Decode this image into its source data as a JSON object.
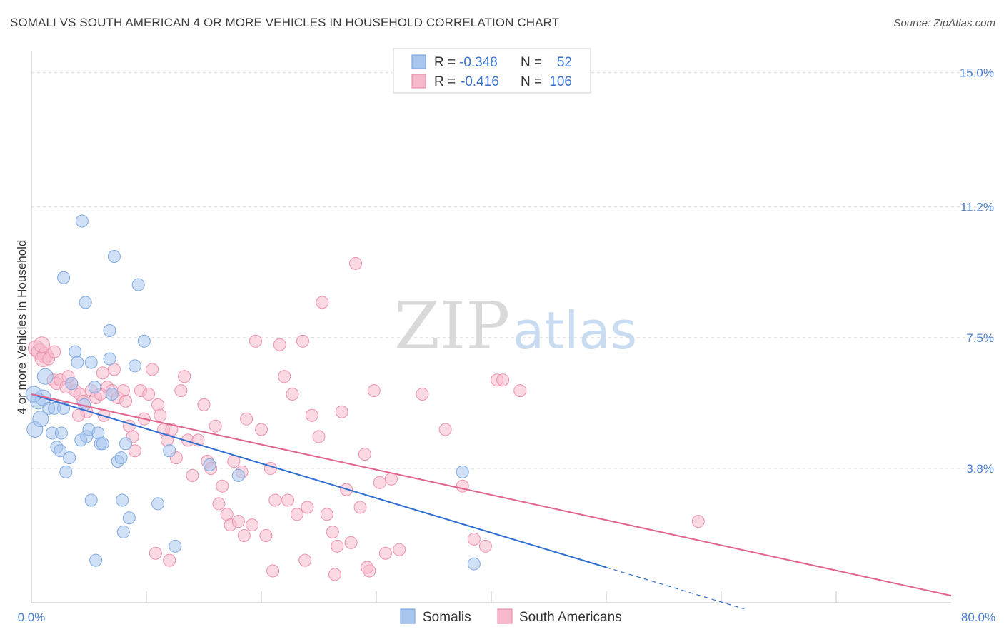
{
  "title": "SOMALI VS SOUTH AMERICAN 4 OR MORE VEHICLES IN HOUSEHOLD CORRELATION CHART",
  "source": "Source: ZipAtlas.com",
  "watermark": {
    "zip": "ZIP",
    "atlas": "atlas"
  },
  "legend": {
    "rows": [
      {
        "r_label": "R =",
        "r_value": "-0.348",
        "n_label": "N =",
        "n_value": "52"
      },
      {
        "r_label": "R =",
        "r_value": "-0.416",
        "n_label": "N =",
        "n_value": "106"
      }
    ]
  },
  "bottom_legend": [
    "Somalis",
    "South Americans"
  ],
  "colors": {
    "somali_fill": "#a9c6ee",
    "somali_stroke": "#7ea8e0",
    "somali_line": "#2f6fd1",
    "sa_fill": "#f6b9cb",
    "sa_stroke": "#ee90ad",
    "sa_line": "#e0648e",
    "tick": "#4a7fd0",
    "grid": "#d8d8d8"
  },
  "chart_data": {
    "type": "scatter",
    "title": "SOMALI VS SOUTH AMERICAN 4 OR MORE VEHICLES IN HOUSEHOLD CORRELATION CHART",
    "xlabel": "",
    "ylabel": "4 or more Vehicles in Household",
    "xlim": [
      0,
      80
    ],
    "ylim": [
      0,
      15.6
    ],
    "x_tick_labels": [
      "0.0%",
      "80.0%"
    ],
    "y_ticks": [
      3.8,
      7.5,
      11.2,
      15.0
    ],
    "y_tick_labels": [
      "3.8%",
      "7.5%",
      "11.2%",
      "15.0%"
    ],
    "grid": true,
    "legend_position": "top-center",
    "series": [
      {
        "name": "Somalis",
        "r": -0.348,
        "n": 52,
        "trend": {
          "x0": 0,
          "y0": 5.9,
          "x1": 50,
          "y1": 1.0,
          "dashed_to_x": 62
        },
        "points": [
          [
            0.3,
            4.9
          ],
          [
            0.8,
            5.2
          ],
          [
            0.6,
            5.7
          ],
          [
            1.2,
            6.4
          ],
          [
            1.0,
            5.8
          ],
          [
            1.5,
            5.5
          ],
          [
            1.8,
            4.8
          ],
          [
            2.0,
            5.5
          ],
          [
            2.2,
            4.4
          ],
          [
            2.5,
            4.3
          ],
          [
            2.8,
            5.5
          ],
          [
            3.0,
            3.7
          ],
          [
            2.6,
            4.8
          ],
          [
            3.5,
            6.2
          ],
          [
            3.3,
            4.1
          ],
          [
            3.8,
            7.1
          ],
          [
            4.0,
            6.8
          ],
          [
            4.3,
            4.6
          ],
          [
            4.6,
            5.6
          ],
          [
            4.8,
            4.7
          ],
          [
            2.8,
            9.2
          ],
          [
            4.4,
            10.8
          ],
          [
            4.7,
            8.5
          ],
          [
            5.2,
            6.8
          ],
          [
            5.5,
            6.1
          ],
          [
            5.2,
            2.9
          ],
          [
            5.0,
            4.9
          ],
          [
            5.8,
            4.8
          ],
          [
            6.0,
            4.5
          ],
          [
            6.2,
            4.5
          ],
          [
            5.6,
            1.2
          ],
          [
            6.8,
            7.7
          ],
          [
            7.0,
            5.9
          ],
          [
            6.8,
            6.9
          ],
          [
            7.5,
            4.0
          ],
          [
            7.8,
            4.1
          ],
          [
            7.2,
            9.8
          ],
          [
            8.2,
            4.5
          ],
          [
            7.9,
            2.9
          ],
          [
            8.5,
            2.4
          ],
          [
            9.0,
            6.7
          ],
          [
            9.3,
            9.0
          ],
          [
            9.8,
            7.4
          ],
          [
            8.0,
            2.0
          ],
          [
            11.0,
            2.8
          ],
          [
            12.0,
            4.3
          ],
          [
            12.5,
            1.6
          ],
          [
            15.5,
            3.9
          ],
          [
            18.0,
            3.6
          ],
          [
            37.5,
            3.7
          ],
          [
            38.5,
            1.1
          ],
          [
            0.2,
            5.9
          ]
        ]
      },
      {
        "name": "South Americans",
        "r": -0.416,
        "n": 106,
        "trend": {
          "x0": 0,
          "y0": 5.9,
          "x1": 80,
          "y1": 0.2
        },
        "points": [
          [
            0.4,
            7.2
          ],
          [
            0.7,
            7.1
          ],
          [
            1.2,
            7.0
          ],
          [
            1.0,
            6.9
          ],
          [
            1.5,
            6.9
          ],
          [
            1.9,
            6.3
          ],
          [
            2.2,
            6.2
          ],
          [
            2.5,
            6.3
          ],
          [
            3.0,
            6.1
          ],
          [
            3.5,
            6.2
          ],
          [
            3.8,
            6.0
          ],
          [
            4.2,
            5.9
          ],
          [
            4.5,
            5.7
          ],
          [
            4.8,
            5.4
          ],
          [
            5.2,
            6.0
          ],
          [
            5.6,
            5.8
          ],
          [
            6.0,
            5.9
          ],
          [
            6.2,
            6.5
          ],
          [
            6.6,
            6.1
          ],
          [
            7.0,
            6.0
          ],
          [
            7.2,
            6.6
          ],
          [
            7.5,
            5.8
          ],
          [
            8.0,
            6.0
          ],
          [
            8.2,
            5.7
          ],
          [
            8.5,
            5.0
          ],
          [
            8.8,
            4.7
          ],
          [
            9.0,
            4.3
          ],
          [
            9.5,
            6.0
          ],
          [
            9.8,
            5.2
          ],
          [
            10.2,
            5.9
          ],
          [
            10.5,
            6.6
          ],
          [
            11.0,
            5.6
          ],
          [
            11.2,
            5.3
          ],
          [
            11.5,
            4.9
          ],
          [
            11.8,
            4.6
          ],
          [
            12.2,
            4.9
          ],
          [
            12.6,
            4.1
          ],
          [
            13.0,
            6.0
          ],
          [
            13.3,
            6.4
          ],
          [
            13.6,
            4.6
          ],
          [
            14.0,
            3.6
          ],
          [
            14.5,
            4.6
          ],
          [
            15.0,
            5.6
          ],
          [
            15.3,
            4.0
          ],
          [
            15.6,
            3.8
          ],
          [
            16.0,
            5.0
          ],
          [
            16.3,
            2.8
          ],
          [
            16.6,
            3.3
          ],
          [
            17.0,
            2.5
          ],
          [
            17.3,
            2.2
          ],
          [
            17.6,
            4.0
          ],
          [
            18.0,
            2.3
          ],
          [
            18.3,
            3.7
          ],
          [
            18.7,
            5.2
          ],
          [
            19.2,
            2.2
          ],
          [
            19.5,
            7.4
          ],
          [
            20.0,
            4.9
          ],
          [
            20.4,
            1.9
          ],
          [
            20.8,
            3.8
          ],
          [
            21.2,
            2.9
          ],
          [
            21.6,
            7.3
          ],
          [
            22.0,
            6.4
          ],
          [
            22.3,
            2.9
          ],
          [
            22.7,
            5.9
          ],
          [
            23.1,
            2.5
          ],
          [
            23.6,
            7.4
          ],
          [
            24.0,
            2.7
          ],
          [
            24.4,
            5.3
          ],
          [
            25.0,
            4.7
          ],
          [
            25.3,
            8.5
          ],
          [
            25.7,
            2.5
          ],
          [
            26.2,
            2.0
          ],
          [
            26.6,
            1.6
          ],
          [
            27.0,
            5.4
          ],
          [
            27.4,
            3.2
          ],
          [
            27.8,
            1.7
          ],
          [
            28.2,
            9.6
          ],
          [
            28.6,
            2.7
          ],
          [
            29.0,
            4.2
          ],
          [
            29.4,
            0.9
          ],
          [
            29.8,
            6.0
          ],
          [
            30.3,
            3.4
          ],
          [
            30.8,
            1.4
          ],
          [
            31.3,
            3.5
          ],
          [
            32.0,
            1.5
          ],
          [
            34.0,
            5.9
          ],
          [
            36.0,
            4.9
          ],
          [
            37.5,
            3.3
          ],
          [
            38.5,
            1.8
          ],
          [
            39.5,
            1.6
          ],
          [
            40.5,
            6.3
          ],
          [
            41.0,
            6.3
          ],
          [
            42.5,
            6.0
          ],
          [
            58.0,
            2.3
          ],
          [
            0.9,
            7.3
          ],
          [
            2.0,
            7.1
          ],
          [
            3.2,
            6.4
          ],
          [
            4.1,
            5.3
          ],
          [
            6.3,
            5.3
          ],
          [
            10.8,
            1.4
          ],
          [
            12.0,
            1.2
          ],
          [
            18.5,
            1.9
          ],
          [
            21.0,
            0.9
          ],
          [
            23.8,
            1.2
          ],
          [
            26.4,
            0.8
          ],
          [
            29.2,
            1.0
          ]
        ]
      }
    ]
  }
}
